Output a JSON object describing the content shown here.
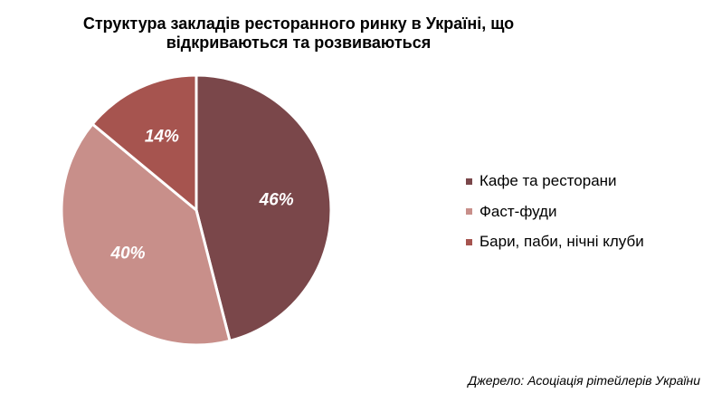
{
  "chart_data": {
    "type": "pie",
    "title_lines": [
      "Структура закладів ресторанного ринку в Україні, що",
      "відкриваються та розвиваються"
    ],
    "categories": [
      "Кафе та ресторани",
      "Фаст-фуди",
      "Бари, паби, нічні клуби"
    ],
    "values": [
      46,
      40,
      14
    ],
    "value_labels": [
      "46%",
      "40%",
      "14%"
    ],
    "colors": [
      "#7a474a",
      "#c88f8a",
      "#a6544f"
    ],
    "slice_border_color": "#ffffff",
    "legend_position": "right",
    "start_angle": "12 o'clock",
    "direction": "clockwise"
  },
  "source": "Джерело: Асоціація рітейлерів України"
}
